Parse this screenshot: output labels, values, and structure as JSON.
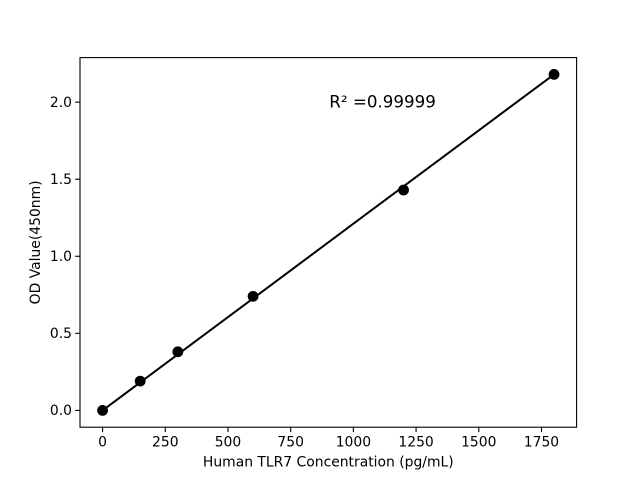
{
  "figure": {
    "background_color": "#ffffff",
    "foreground_color": "#000000"
  },
  "chart_data": {
    "type": "scatter",
    "title": "",
    "xlabel": "Human TLR7 Concentration (pg/mL)",
    "ylabel": "OD Value(450nm)",
    "x": [
      0,
      150,
      300,
      600,
      1200,
      1800
    ],
    "y": [
      0.0,
      0.19,
      0.38,
      0.74,
      1.43,
      2.18
    ],
    "fit_line": {
      "x": [
        0,
        1800
      ],
      "y": [
        0.0,
        2.18
      ]
    },
    "annotation": {
      "text": "R² =0.99999",
      "r_squared": 0.99999,
      "x_data": 904,
      "y_data": 1.964
    },
    "x_tick_values": [
      0,
      250,
      500,
      750,
      1000,
      1250,
      1500,
      1750
    ],
    "x_tick_labels": [
      "0",
      "250",
      "500",
      "750",
      "1000",
      "1250",
      "1500",
      "1750"
    ],
    "y_tick_values": [
      0.0,
      0.5,
      1.0,
      1.5,
      2.0
    ],
    "y_tick_labels": [
      "0.0",
      "0.5",
      "1.0",
      "1.5",
      "2.0"
    ],
    "xlim": [
      -90,
      1890
    ],
    "ylim": [
      -0.109,
      2.289
    ],
    "grid": false,
    "legend": "none",
    "marker": "filled-circle",
    "marker_color": "#000000",
    "line_color": "#000000"
  }
}
